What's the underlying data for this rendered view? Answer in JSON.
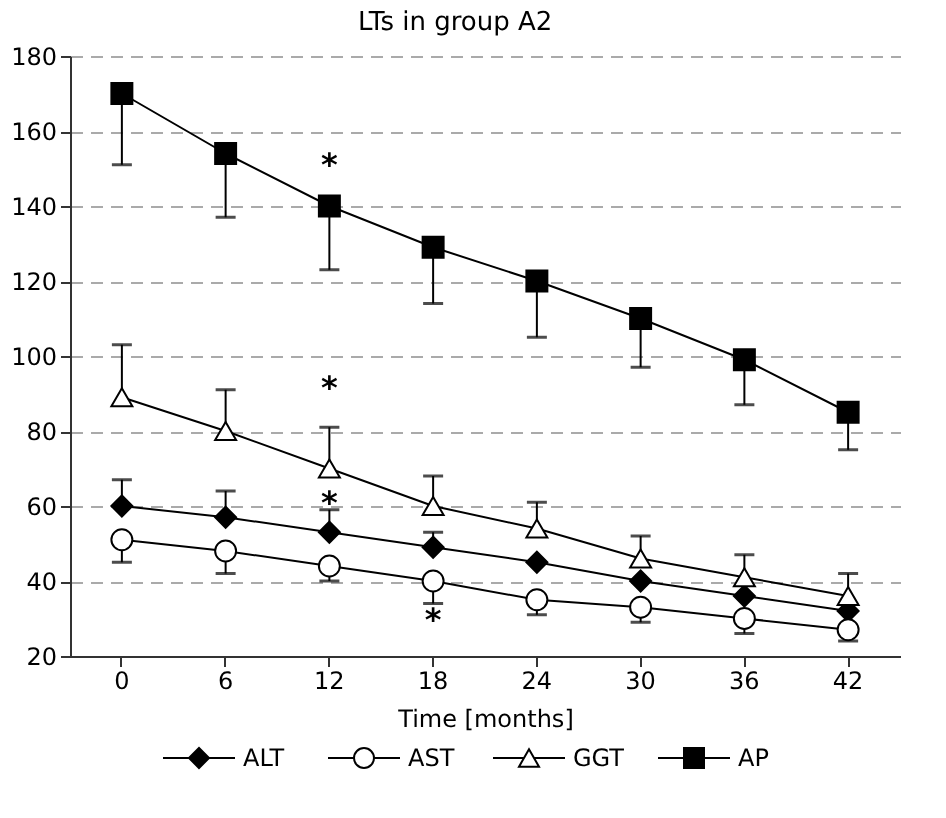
{
  "chart_data": {
    "type": "line",
    "title": "LTs in group A2",
    "xlabel": "Time [months]",
    "categories": [
      "0",
      "6",
      "12",
      "18",
      "24",
      "30",
      "36",
      "42"
    ],
    "series": [
      {
        "name": "ALT",
        "color": "#000000",
        "marker": "diamond",
        "values": [
          60,
          57,
          53,
          49,
          45,
          40,
          36,
          32
        ],
        "errors": [
          [
            60,
            67
          ],
          [
            57,
            64
          ],
          [
            53,
            59
          ],
          [
            49,
            53
          ],
          null,
          null,
          null,
          null
        ]
      },
      {
        "name": "AST",
        "color": "#000000",
        "marker": "circle",
        "values": [
          51,
          48,
          44,
          40,
          35,
          33,
          30,
          27
        ],
        "errors": [
          [
            45,
            51
          ],
          [
            42,
            48
          ],
          [
            40,
            44
          ],
          [
            34,
            40
          ],
          [
            31,
            35
          ],
          [
            29,
            33
          ],
          [
            26,
            30
          ],
          [
            24,
            27
          ]
        ]
      },
      {
        "name": "GGT",
        "color": "#000000",
        "marker": "triangle",
        "values": [
          89,
          80,
          70,
          60,
          54,
          46,
          41,
          36
        ],
        "errors": [
          [
            89,
            103
          ],
          [
            80,
            91
          ],
          [
            70,
            81
          ],
          [
            60,
            68
          ],
          [
            54,
            61
          ],
          [
            46,
            52
          ],
          [
            41,
            47
          ],
          [
            36,
            42
          ]
        ]
      },
      {
        "name": "AP",
        "color": "#000000",
        "marker": "square",
        "values": [
          170,
          154,
          140,
          129,
          120,
          110,
          99,
          85
        ],
        "errors": [
          [
            151,
            170
          ],
          [
            137,
            154
          ],
          [
            123,
            140
          ],
          [
            114,
            129
          ],
          [
            105,
            120
          ],
          [
            97,
            110
          ],
          [
            87,
            99
          ],
          [
            75,
            85
          ]
        ]
      }
    ],
    "ylim": [
      20,
      180
    ],
    "yticks": [
      20,
      40,
      60,
      80,
      100,
      120,
      140,
      160,
      180
    ],
    "grid": "y",
    "legend": "bottom",
    "line_style": "solid",
    "annotations": [
      "*",
      "*",
      "*",
      "*"
    ]
  }
}
